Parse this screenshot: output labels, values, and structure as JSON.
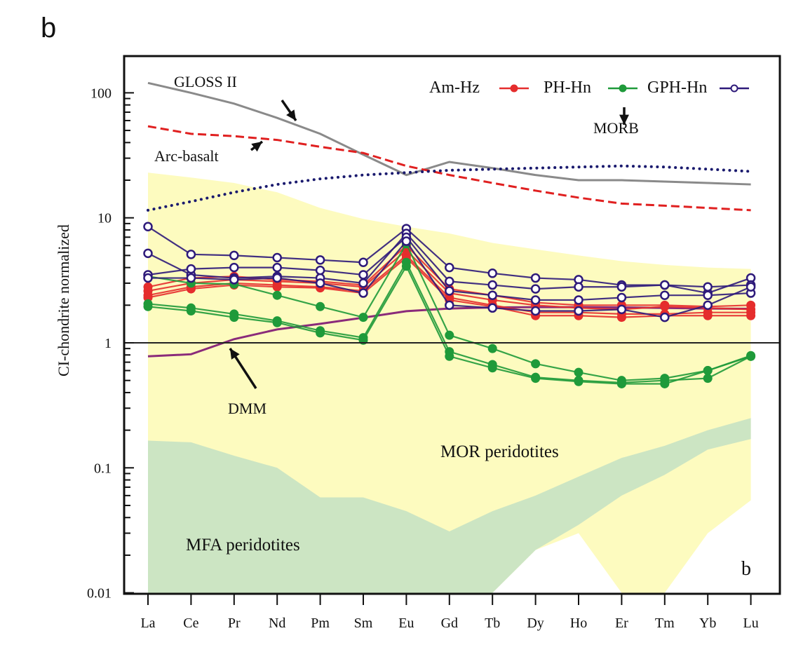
{
  "panel_letter": "b",
  "chart_data": {
    "type": "line",
    "title": "",
    "xlabel": "",
    "ylabel": "CI-chondrite normalized",
    "yscale": "log",
    "ylim": [
      0.01,
      200
    ],
    "yticks": [
      {
        "value": 100,
        "label": "100"
      },
      {
        "value": 10,
        "label": "10"
      },
      {
        "value": 1,
        "label": "1"
      },
      {
        "value": 0.1,
        "label": "0.1"
      },
      {
        "value": 0.01,
        "label": "0.01"
      }
    ],
    "categories": [
      "La",
      "Ce",
      "Pr",
      "Nd",
      "Pm",
      "Sm",
      "Eu",
      "Gd",
      "Tb",
      "Dy",
      "Ho",
      "Er",
      "Tm",
      "Yb",
      "Lu"
    ],
    "reference_line": {
      "value": 1
    },
    "corner_label": "b",
    "fields": [
      {
        "name": "MOR peridotites",
        "color": "#fdfbbf",
        "upper": [
          23,
          21,
          19,
          16,
          12,
          9.8,
          8.5,
          7.5,
          6.3,
          5.6,
          5.0,
          4.5,
          4.2,
          4.0,
          3.9
        ],
        "lower": [
          0.01,
          0.01,
          0.01,
          0.01,
          0.01,
          0.01,
          0.01,
          0.01,
          0.01,
          0.022,
          0.03,
          0.01,
          0.01,
          0.03,
          0.055
        ],
        "lower_note": "lower edge closes at 0.01 between Gd-Tb and Er-Tm"
      },
      {
        "name": "MFA peridotites",
        "color": "#c9e4c3",
        "upper": [
          0.165,
          0.16,
          0.125,
          0.1,
          0.058,
          0.058,
          0.045,
          0.031,
          0.045,
          0.06,
          0.085,
          0.12,
          0.15,
          0.2,
          0.25
        ],
        "lower": [
          0.01,
          0.01,
          0.01,
          0.01,
          0.01,
          0.01,
          0.01,
          0.01,
          0.01,
          0.022,
          0.035,
          0.06,
          0.088,
          0.14,
          0.17
        ]
      }
    ],
    "reference_series": [
      {
        "name": "GLOSS II",
        "style": "solid",
        "color": "#8a8a8a",
        "values": [
          120,
          100,
          82,
          63,
          47,
          32,
          22,
          28,
          25,
          22,
          20,
          20,
          19.5,
          19,
          18.5
        ]
      },
      {
        "name": "Arc-basalt",
        "style": "dashed",
        "color": "#e02020",
        "values": [
          54,
          47,
          45,
          42,
          37,
          33,
          26,
          22,
          19,
          16.5,
          14.5,
          13,
          12.5,
          12,
          11.5
        ]
      },
      {
        "name": "MORB",
        "style": "dotted",
        "color": "#1a1a6e",
        "values": [
          11.5,
          13.5,
          16,
          18.5,
          20.5,
          22,
          23,
          24,
          24.5,
          25,
          25.5,
          26,
          25.5,
          24.5,
          23.5
        ]
      },
      {
        "name": "DMM",
        "style": "solid",
        "color": "#8a2b7a",
        "values": [
          0.78,
          0.81,
          1.07,
          1.28,
          1.42,
          1.59,
          1.79,
          1.88,
          1.92,
          1.93,
          1.93,
          1.92,
          1.9,
          1.88,
          1.87
        ]
      }
    ],
    "sample_groups": [
      {
        "name": "Am-Hz",
        "color": "#e52d2d",
        "marker": "filled-circle",
        "series": [
          [
            2.8,
            3.3,
            3.4,
            3.2,
            3.1,
            2.9,
            6.0,
            2.7,
            2.4,
            2.1,
            2.0,
            2.0,
            2.0,
            1.95,
            2.0
          ],
          [
            2.6,
            3.0,
            3.2,
            3.1,
            3.0,
            2.8,
            5.5,
            2.5,
            2.2,
            2.0,
            1.9,
            1.85,
            1.95,
            1.9,
            1.85
          ],
          [
            2.4,
            2.8,
            3.0,
            2.9,
            2.8,
            2.6,
            5.0,
            2.3,
            2.0,
            1.75,
            1.75,
            1.7,
            1.7,
            1.75,
            1.75
          ],
          [
            2.3,
            2.7,
            2.9,
            2.8,
            2.75,
            2.5,
            4.8,
            2.2,
            1.95,
            1.65,
            1.65,
            1.6,
            1.65,
            1.65,
            1.65
          ]
        ]
      },
      {
        "name": "PH-Hn",
        "color": "#1f9a3a",
        "marker": "filled-circle",
        "series": [
          [
            3.4,
            3.0,
            2.95,
            2.4,
            1.95,
            1.6,
            6.2,
            1.15,
            0.9,
            0.68,
            0.58,
            0.5,
            0.52,
            0.6,
            0.78
          ],
          [
            2.05,
            1.9,
            1.7,
            1.5,
            1.25,
            1.1,
            4.4,
            0.85,
            0.67,
            0.53,
            0.5,
            0.48,
            0.5,
            0.52,
            0.78
          ],
          [
            1.95,
            1.8,
            1.6,
            1.45,
            1.2,
            1.05,
            4.1,
            0.78,
            0.63,
            0.52,
            0.49,
            0.47,
            0.47,
            0.6,
            0.79
          ]
        ]
      },
      {
        "name": "GPH-Hn",
        "color": "#2e1a7a",
        "marker": "open-circle",
        "series": [
          [
            8.5,
            5.1,
            5.0,
            4.8,
            4.6,
            4.4,
            8.2,
            4.0,
            3.6,
            3.3,
            3.2,
            2.9,
            2.9,
            2.5,
            3.3
          ],
          [
            5.2,
            3.5,
            3.3,
            3.4,
            3.3,
            3.0,
            7.5,
            3.1,
            2.9,
            2.7,
            2.8,
            2.8,
            2.9,
            2.8,
            2.9
          ],
          [
            3.5,
            3.9,
            4.0,
            4.0,
            3.8,
            3.5,
            7.0,
            2.6,
            2.4,
            2.2,
            2.2,
            2.3,
            2.4,
            2.4,
            2.5
          ],
          [
            3.3,
            3.3,
            3.2,
            3.3,
            3.0,
            2.5,
            6.5,
            2.0,
            1.9,
            1.8,
            1.8,
            1.85,
            1.6,
            2.0,
            2.8
          ]
        ]
      }
    ],
    "legend": {
      "placement": "top-right",
      "entries": [
        "Am-Hz",
        "PH-Hn",
        "GPH-Hn"
      ]
    },
    "annotations": [
      {
        "text": "GLOSS II",
        "points_to": "GLOSS II",
        "near_category": "Nd"
      },
      {
        "text": "Arc-basalt",
        "points_to": "Arc-basalt",
        "near_category": "Pr"
      },
      {
        "text": "MORB",
        "points_to": "MORB",
        "near_category": "Ho"
      },
      {
        "text": "DMM",
        "points_to": "DMM",
        "near_category": "Pr"
      },
      {
        "text": "MOR peridotites",
        "type": "field-label"
      },
      {
        "text": "MFA peridotites",
        "type": "field-label"
      }
    ]
  }
}
